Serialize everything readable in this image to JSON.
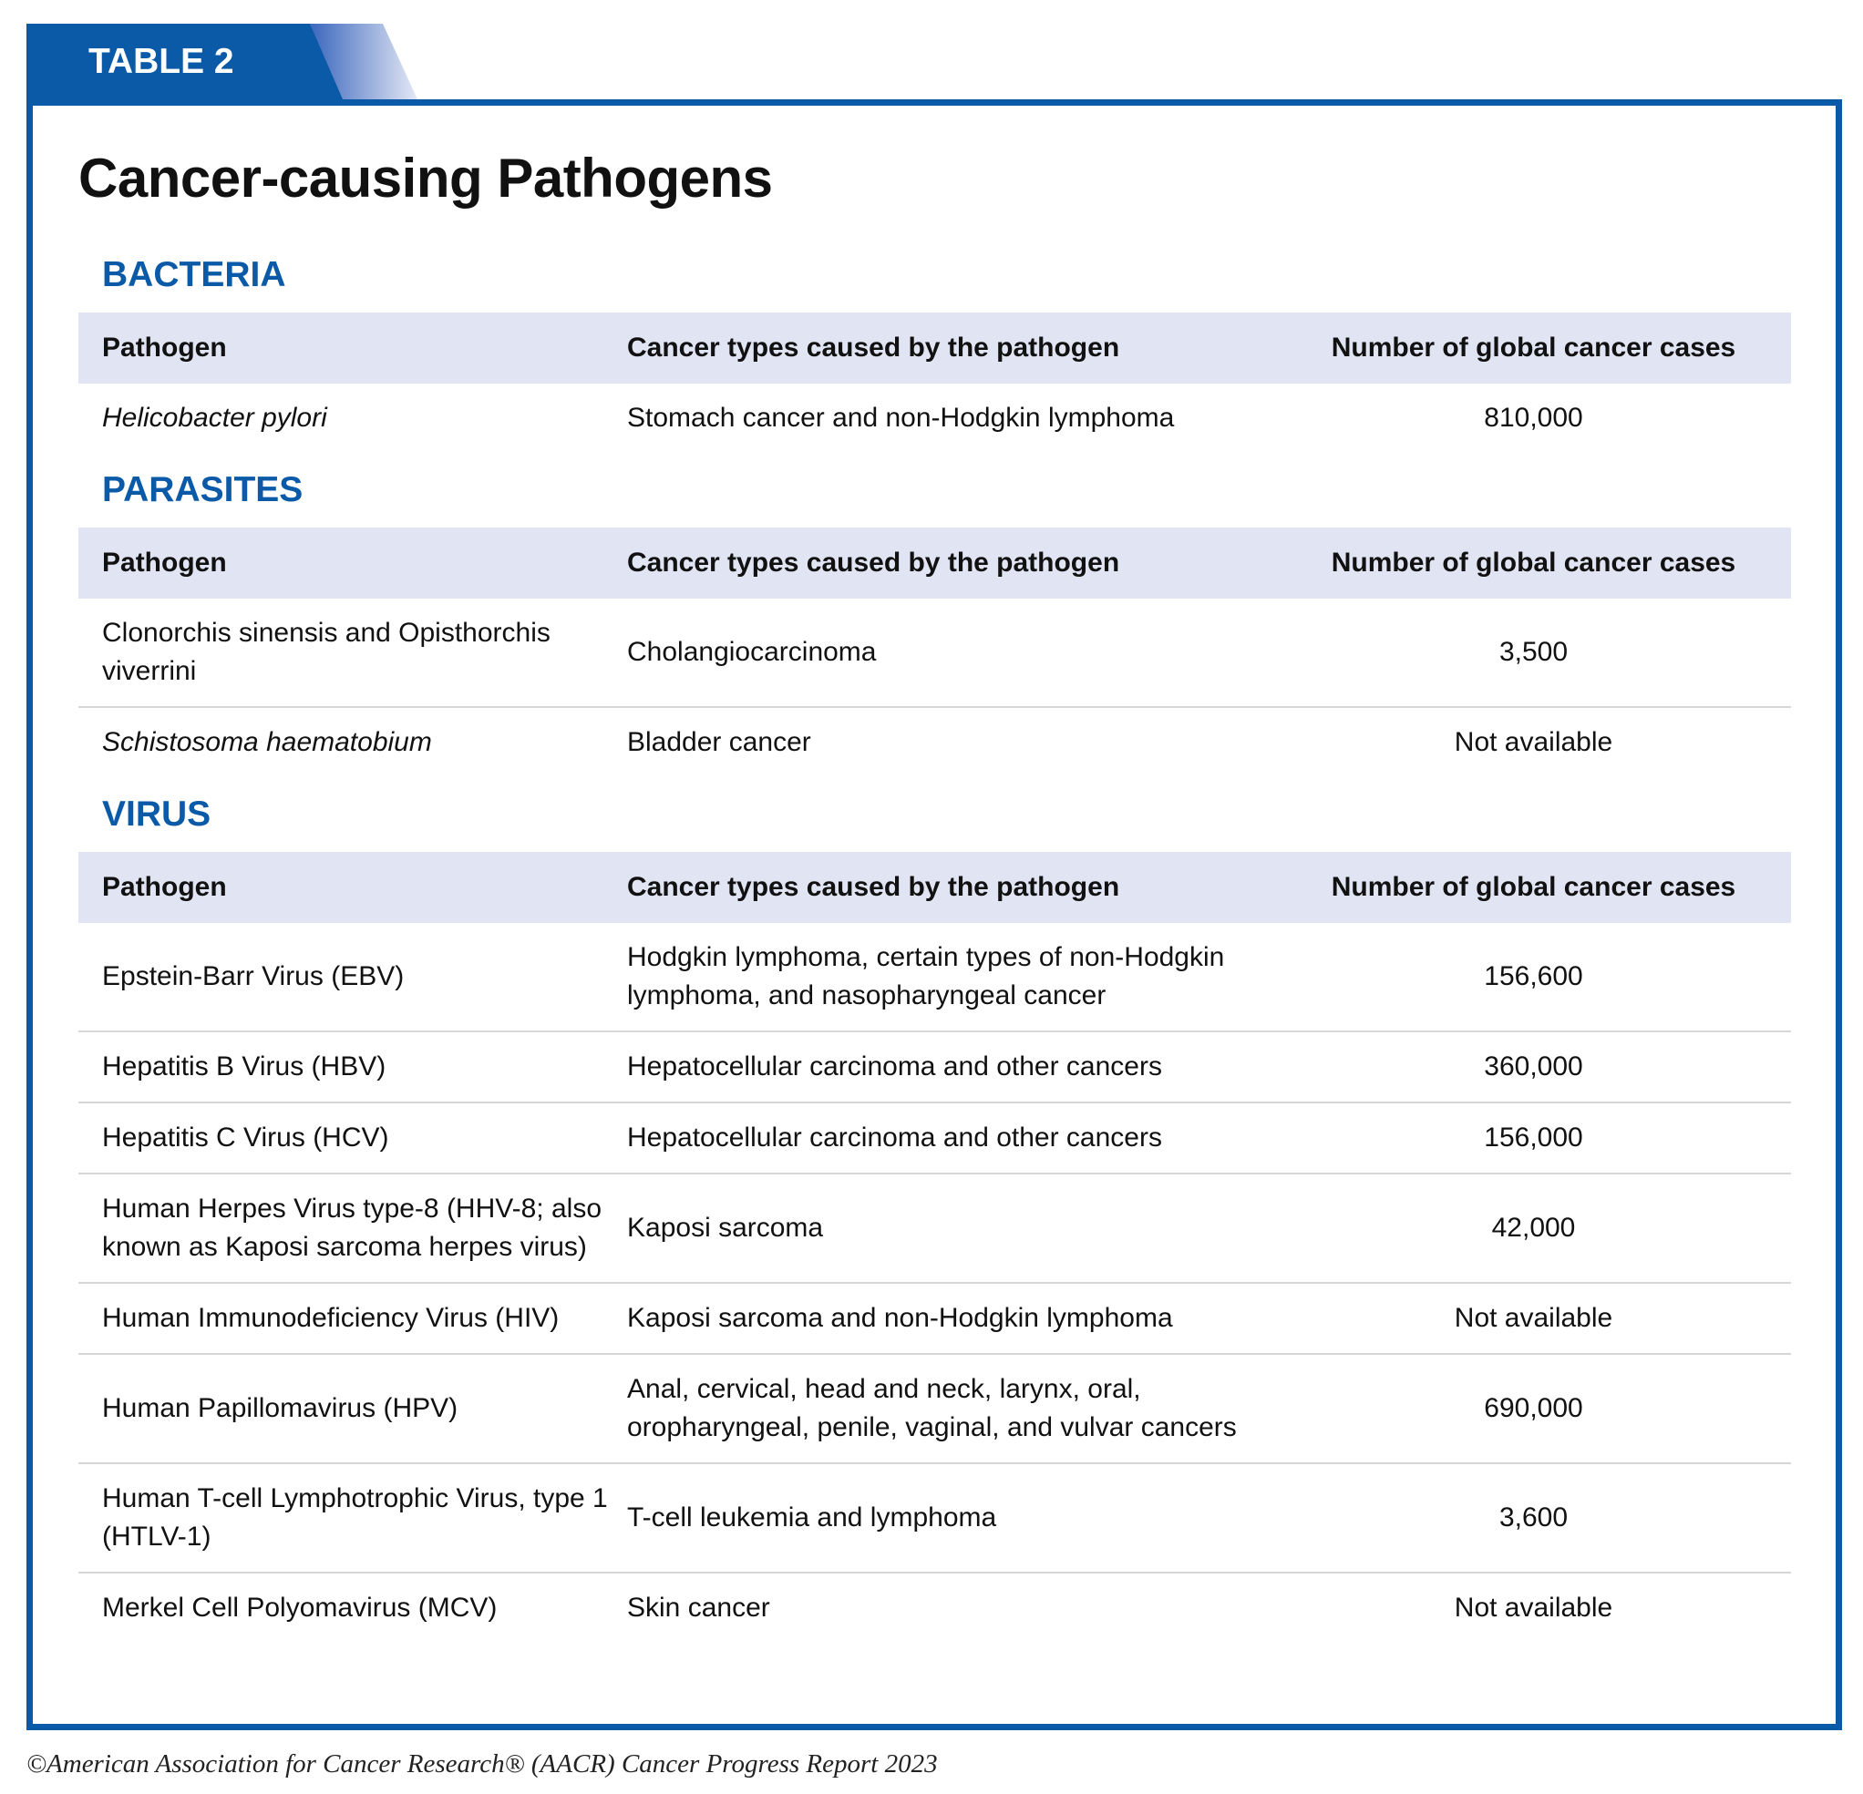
{
  "tab_label": "TABLE 2",
  "title": "Cancer-causing Pathogens",
  "sections": [
    {
      "heading": "BACTERIA",
      "columns": [
        "Pathogen",
        "Cancer types caused by the pathogen",
        "Number of global cancer cases"
      ],
      "rows": [
        {
          "pathogen": "Helicobacter pylori",
          "italic": true,
          "cancer_types": "Stomach cancer and non-Hodgkin lymphoma",
          "cases": "810,000"
        }
      ]
    },
    {
      "heading": "PARASITES",
      "columns": [
        "Pathogen",
        "Cancer types caused by the pathogen",
        "Number of global cancer cases"
      ],
      "rows": [
        {
          "pathogen": "Clonorchis sinensis and Opisthorchis viverrini",
          "cancer_types": "Cholangiocarcinoma",
          "cases": "3,500"
        },
        {
          "pathogen": "Schistosoma haematobium",
          "italic": true,
          "cancer_types": "Bladder cancer",
          "cases": "Not available"
        }
      ]
    },
    {
      "heading": "VIRUS",
      "columns": [
        "Pathogen",
        "Cancer types caused by the pathogen",
        "Number of global cancer cases"
      ],
      "rows": [
        {
          "pathogen": "Epstein-Barr Virus (EBV)",
          "cancer_types": "Hodgkin lymphoma, certain types of non-Hodgkin lymphoma, and nasopharyngeal cancer",
          "cases": "156,600"
        },
        {
          "pathogen": "Hepatitis B Virus (HBV)",
          "cancer_types": "Hepatocellular carcinoma and other cancers",
          "cases": "360,000"
        },
        {
          "pathogen": "Hepatitis C Virus (HCV)",
          "cancer_types": "Hepatocellular carcinoma and other cancers",
          "cases": "156,000"
        },
        {
          "pathogen": "Human Herpes Virus type-8 (HHV-8; also known as Kaposi sarcoma herpes virus)",
          "cancer_types": "Kaposi sarcoma",
          "cases": "42,000"
        },
        {
          "pathogen": "Human Immunodeficiency Virus (HIV)",
          "cancer_types": "Kaposi sarcoma and non-Hodgkin lymphoma",
          "cases": "Not available"
        },
        {
          "pathogen": "Human Papillomavirus (HPV)",
          "cancer_types": "Anal, cervical, head and neck, larynx, oral, oropharyngeal, penile, vaginal, and vulvar cancers",
          "cases": "690,000"
        },
        {
          "pathogen": "Human T-cell Lymphotrophic Virus, type 1 (HTLV-1)",
          "cancer_types": "T-cell leukemia and lymphoma",
          "cases": "3,600"
        },
        {
          "pathogen": "Merkel Cell Polyomavirus (MCV)",
          "cancer_types": "Skin cancer",
          "cases": "Not available"
        }
      ]
    }
  ],
  "footer": "©American Association for Cancer Research® (AACR) Cancer Progress Report 2023"
}
